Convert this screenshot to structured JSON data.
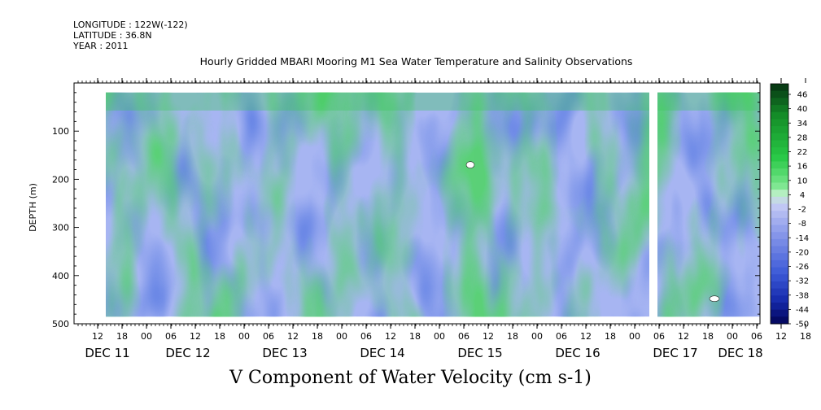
{
  "header": {
    "longitude": "LONGITUDE : 122W(-122)",
    "latitude": "LATITUDE : 36.8N",
    "year": "YEAR : 2011"
  },
  "chart_data": {
    "type": "heatmap",
    "title": "Hourly Gridded MBARI Mooring M1 Sea Water Temperature and Salinity Observations",
    "caption": "V Component of Water Velocity (cm s-1)",
    "ylabel": "DEPTH (m)",
    "ylim": [
      500,
      0
    ],
    "y_ticks": [
      100,
      200,
      300,
      400,
      500
    ],
    "data_depth_range": [
      20,
      485
    ],
    "x_hour_labels": [
      "12",
      "18",
      "00",
      "06",
      "12",
      "18",
      "00",
      "06",
      "12",
      "18",
      "00",
      "06",
      "12",
      "18",
      "00",
      "06",
      "12",
      "18",
      "00",
      "06",
      "12",
      "18",
      "00",
      "06",
      "12",
      "18",
      "00",
      "06",
      "12",
      "18",
      "00",
      "06"
    ],
    "x_day_labels": [
      "DEC 11",
      "DEC 12",
      "DEC 13",
      "DEC 14",
      "DEC 15",
      "DEC 16",
      "DEC 17",
      "DEC 18"
    ],
    "colorbar_labels": [
      "46",
      "40",
      "34",
      "28",
      "22",
      "16",
      "10",
      "4",
      "-2",
      "-8",
      "-14",
      "-20",
      "-26",
      "-32",
      "-38",
      "-44",
      "-50"
    ],
    "colorbar_range": [
      -50,
      52
    ],
    "colors": {
      "strong_positive": "#0b4f1c",
      "moderate_positive": "#1fbe35",
      "weak_positive": "#8ff0a4",
      "weak_negative": "#a6b4f2",
      "moderate_negative": "#4f6de0",
      "strong_negative": "#0d1580"
    }
  }
}
